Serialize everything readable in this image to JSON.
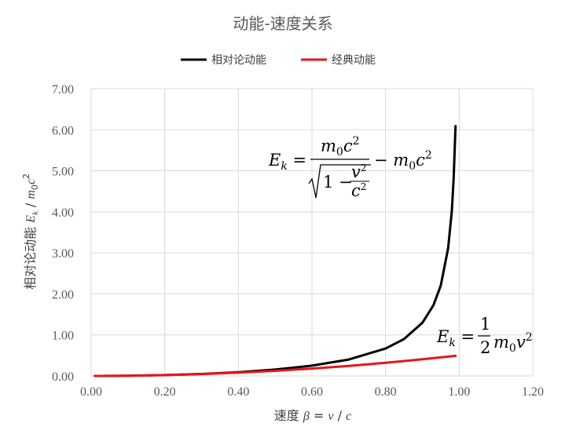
{
  "chart_data": {
    "type": "line",
    "title": "动能-速度关系",
    "xlabel": "速度 β = v / c",
    "ylabel": "相对论动能 Ek / m0c²",
    "xlim": [
      0,
      1.2
    ],
    "ylim": [
      0,
      7
    ],
    "x_ticks": [
      "0.00",
      "0.20",
      "0.40",
      "0.60",
      "0.80",
      "1.00",
      "1.20"
    ],
    "y_ticks": [
      "0.00",
      "1.00",
      "2.00",
      "3.00",
      "4.00",
      "5.00",
      "6.00",
      "7.00"
    ],
    "grid": true,
    "legend_position": "top",
    "series": [
      {
        "name": "相对论动能",
        "color": "#000000",
        "x": [
          0.01,
          0.1,
          0.2,
          0.3,
          0.4,
          0.5,
          0.6,
          0.7,
          0.8,
          0.85,
          0.9,
          0.93,
          0.95,
          0.97,
          0.98,
          0.985,
          0.99
        ],
        "y": [
          0.0001,
          0.005,
          0.021,
          0.048,
          0.091,
          0.155,
          0.25,
          0.4,
          0.667,
          0.898,
          1.294,
          1.72,
          2.203,
          3.113,
          4.025,
          4.812,
          6.089
        ]
      },
      {
        "name": "经典动能",
        "color": "#e8141c",
        "x": [
          0.01,
          0.1,
          0.2,
          0.3,
          0.4,
          0.5,
          0.6,
          0.7,
          0.8,
          0.9,
          0.99
        ],
        "y": [
          0.0001,
          0.005,
          0.02,
          0.045,
          0.08,
          0.125,
          0.18,
          0.245,
          0.32,
          0.405,
          0.49
        ]
      }
    ],
    "annotations": [
      {
        "label": "relativistic-formula",
        "text": "Ek = m0c² / √(1 − v²/c²) − m0c²"
      },
      {
        "label": "classical-formula",
        "text": "Ek = 1/2 m0v²"
      }
    ]
  }
}
